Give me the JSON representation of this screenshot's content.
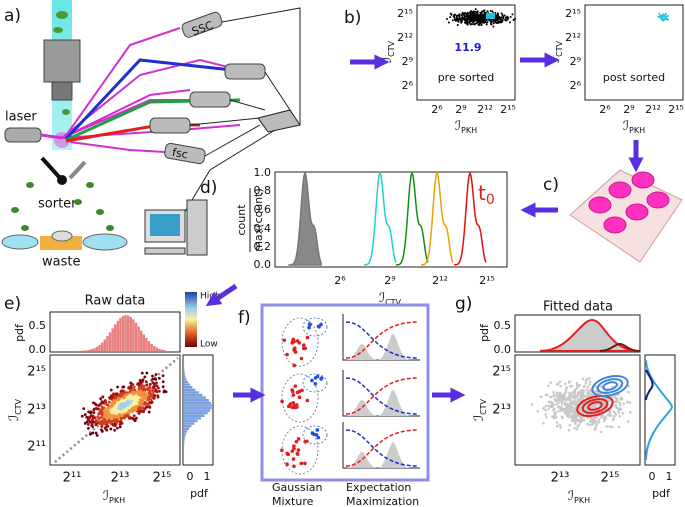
{
  "panel_a": {
    "label": "a)",
    "laser": "laser",
    "sorter": "sorter",
    "waste": "waste",
    "ssc": "SSC",
    "fsc": "fsc"
  },
  "panel_b": {
    "label": "b)",
    "pre_caption": "pre sorted",
    "pre_value": "11.9",
    "post_caption": "post sorted",
    "y_label": {
      "symbol": "ℐ",
      "sub": "CTV"
    },
    "x_label": {
      "symbol": "ℐ",
      "sub": "PKH"
    },
    "yticks": [
      "2¹⁵",
      "2¹²",
      "2⁹",
      "2⁶"
    ],
    "xticks": [
      "2⁶",
      "2⁹",
      "2¹²",
      "2¹⁵"
    ]
  },
  "panel_c": {
    "label": "c)"
  },
  "panel_d": {
    "label": "d)",
    "y_label_top": "count",
    "y_label_bottom": "max(count)",
    "yticks": [
      "0.0",
      "0.2",
      "0.4",
      "0.6",
      "0.8",
      "1.0"
    ],
    "xticks": [
      "2⁶",
      "2⁹",
      "2¹²",
      "2¹⁵"
    ],
    "x_label": {
      "symbol": "ℐ",
      "sub": "CTV"
    },
    "annotation": {
      "symbol": "t",
      "sub": "0"
    }
  },
  "panel_e": {
    "label": "e)",
    "title": "Raw data",
    "pdf": "pdf",
    "top_ticks": [
      "0.5",
      "0.0"
    ],
    "colorbar_high": "High",
    "colorbar_low": "Low",
    "yticks": [
      "2¹⁵",
      "2¹³",
      "2¹¹"
    ],
    "xticks": [
      "2¹¹",
      "2¹³",
      "2¹⁵"
    ],
    "right_ticks": [
      "0",
      "1"
    ],
    "x_label": {
      "symbol": "ℐ",
      "sub": "PKH"
    },
    "y_label": {
      "symbol": "ℐ",
      "sub": "CTV"
    }
  },
  "panel_f": {
    "label": "f)",
    "left_caption": [
      "Gaussian",
      "Mixture"
    ],
    "right_caption": [
      "Expectation",
      "Maximization"
    ]
  },
  "panel_g": {
    "label": "g)",
    "title": "Fitted data",
    "pdf": "pdf",
    "top_ticks": [
      "0.5",
      "0.0"
    ],
    "yticks": [
      "2¹⁵",
      "2¹³"
    ],
    "xticks": [
      "2¹³",
      "2¹⁵"
    ],
    "right_ticks": [
      "0",
      "1"
    ],
    "x_label": {
      "symbol": "ℐ",
      "sub": "PKH"
    },
    "y_label": {
      "symbol": "ℐ",
      "sub": "CTV"
    }
  }
}
